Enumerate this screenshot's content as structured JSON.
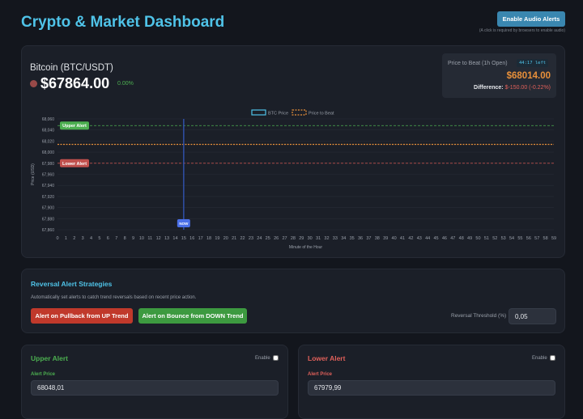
{
  "header": {
    "title": "Crypto & Market Dashboard",
    "audio_button": "Enable Audio Alerts",
    "audio_note": "(A click is required by browsers to enable audio)"
  },
  "ticker": {
    "name": "Bitcoin (BTC/USDT)",
    "price": "$67864.00",
    "change": "0.00%",
    "status_color": "#b85450"
  },
  "beat": {
    "label": "Price to Beat (1h Open)",
    "timer": "44:17 left",
    "price": "$68014.00",
    "diff_label": "Difference:",
    "diff_value": "$-150.00 (-0.22%)"
  },
  "chart_data": {
    "type": "line",
    "legend": [
      {
        "name": "BTC Price",
        "color": "#4fc3e8",
        "style": "solid"
      },
      {
        "name": "Price to Beat",
        "color": "#e8903a",
        "style": "dashed"
      }
    ],
    "legend_position": "top-center",
    "xlabel": "Minute of the Hour",
    "ylabel": "Price (USD)",
    "xlim": [
      0,
      59
    ],
    "ylim": [
      67860,
      68060
    ],
    "ytick_step": 20,
    "xticks": [
      0,
      1,
      2,
      3,
      4,
      5,
      6,
      7,
      8,
      9,
      10,
      11,
      12,
      13,
      14,
      15,
      16,
      17,
      18,
      19,
      20,
      21,
      22,
      23,
      24,
      25,
      26,
      27,
      28,
      29,
      30,
      31,
      32,
      33,
      34,
      35,
      36,
      37,
      38,
      39,
      40,
      41,
      42,
      43,
      44,
      45,
      46,
      47,
      48,
      49,
      50,
      51,
      52,
      53,
      54,
      55,
      56,
      57,
      58,
      59
    ],
    "yticks": [
      "68,060",
      "68,040",
      "68,020",
      "68,000",
      "67,980",
      "67,960",
      "67,940",
      "67,920",
      "67,900",
      "67,880",
      "67,860"
    ],
    "series": [
      {
        "name": "BTC Price",
        "values": []
      }
    ],
    "price_to_beat": 68014,
    "upper_alert": 68048.01,
    "lower_alert": 67979.99,
    "now_minute": 15,
    "annotations": {
      "upper": "Upper Alert",
      "lower": "Lower Alert",
      "now": "NOW"
    },
    "colors": {
      "upper": "#4caf50",
      "lower": "#c0504d",
      "beat": "#e8903a",
      "now": "#2f4fa8",
      "now_label": "#4a6fe8"
    }
  },
  "reversal": {
    "title": "Reversal Alert Strategies",
    "desc": "Automatically set alerts to catch trend reversals based on recent price action.",
    "pullback_button": "Alert on Pullback from UP Trend",
    "bounce_button": "Alert on Bounce from DOWN Trend",
    "threshold_label": "Reversal Threshold (%)",
    "threshold_value": "0,05"
  },
  "upper": {
    "title": "Upper Alert",
    "enable": "Enable",
    "price_label": "Alert Price",
    "price_value": "68048,01",
    "enabled": false
  },
  "lower": {
    "title": "Lower Alert",
    "enable": "Enable",
    "price_label": "Alert Price",
    "price_value": "67979,99",
    "enabled": false
  }
}
